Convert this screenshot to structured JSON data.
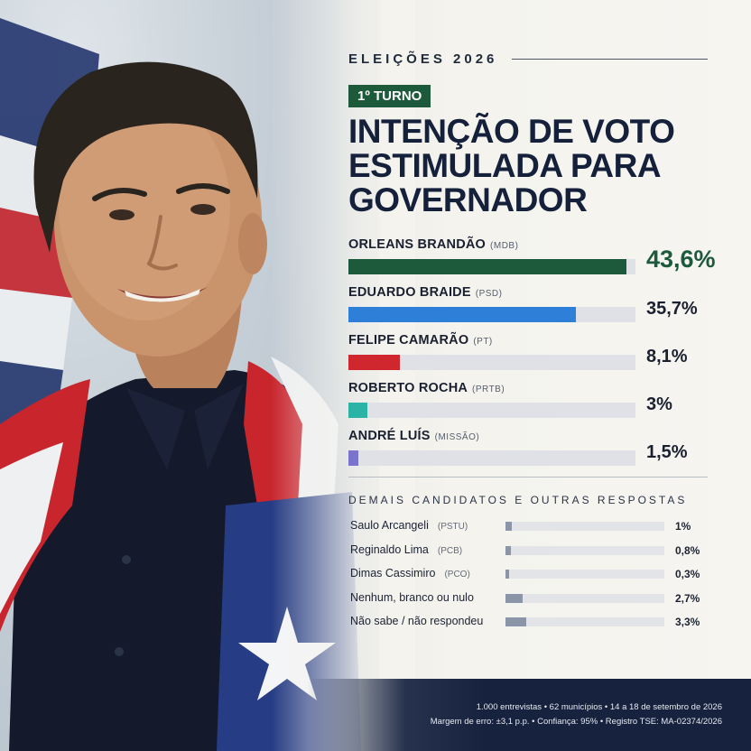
{
  "header": {
    "eyebrow": "ELEIÇÕES 2026",
    "badge": "1º TURNO",
    "headline": [
      "INTENÇÃO DE VOTO",
      "ESTIMULADA PARA",
      "GOVERNADOR"
    ]
  },
  "colors": {
    "accent_green": "#1d5a3b",
    "navy": "#15213a"
  },
  "chart_data": {
    "type": "bar",
    "title": "INTENÇÃO DE VOTO ESTIMULADA PARA GOVERNADOR",
    "xlim": [
      0,
      100
    ],
    "main": [
      {
        "name": "ORLEANS BRANDÃO",
        "party": "(MDB)",
        "value": 43.6,
        "label": "43,6%",
        "color": "#1d5a3b"
      },
      {
        "name": "EDUARDO BRAIDE",
        "party": "(PSD)",
        "value": 35.7,
        "label": "35,7%",
        "color": "#2d7fd8"
      },
      {
        "name": "FELIPE CAMARÃO",
        "party": "(PT)",
        "value": 8.1,
        "label": "8,1%",
        "color": "#d0262d"
      },
      {
        "name": "ROBERTO ROCHA",
        "party": "(PRTB)",
        "value": 3,
        "label": "3%",
        "color": "#2bb3a6"
      },
      {
        "name": "ANDRÉ LUÍS",
        "party": "(MISSÃO)",
        "value": 1.5,
        "label": "1,5%",
        "color": "#7b74cf"
      }
    ],
    "others_title": "DEMAIS CANDIDATOS E OUTRAS RESPOSTAS",
    "others": [
      {
        "name": "Saulo Arcangeli",
        "party": "(PSTU)",
        "value": 1,
        "label": "1%"
      },
      {
        "name": "Reginaldo Lima",
        "party": "(PCB)",
        "value": 0.8,
        "label": "0,8%"
      },
      {
        "name": "Dimas Cassimiro",
        "party": "(PCO)",
        "value": 0.3,
        "label": "0,3%"
      },
      {
        "name": "Nenhum, branco ou nulo",
        "party": "",
        "value": 2.7,
        "label": "2,7%"
      },
      {
        "name": "Não sabe / não respondeu",
        "party": "",
        "value": 3.3,
        "label": "3,3%"
      }
    ]
  },
  "footer": {
    "line1": "1.000 entrevistas  •  62 municípios  •  14 a 18 de setembro de 2026",
    "line2": "Margem de erro: ±3,1 p.p.  •  Confiança: 95%  •  Registro TSE: MA-02374/2026"
  }
}
